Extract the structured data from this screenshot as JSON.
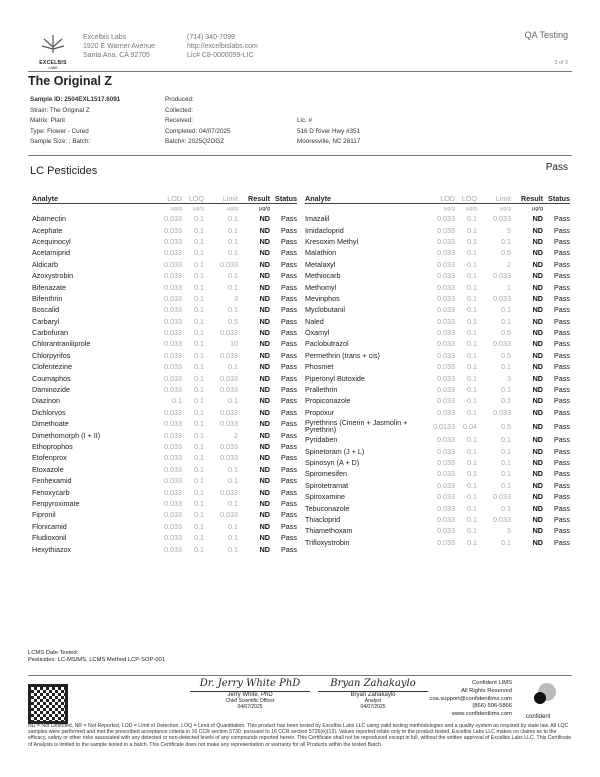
{
  "lab": {
    "logo_text": "EXCELBIS",
    "logo_sub": "LABS",
    "name": "Excelbis Labs",
    "address1": "1920 E Warner Avenue",
    "address2": "Santa Ana, CA 92705",
    "phone": "(714) 340-7099",
    "website": "http://excelbislabs.com",
    "license": "Lic# C8-0000059-LIC"
  },
  "header": {
    "category": "QA Testing",
    "page": "3 of 3"
  },
  "title": "The Original Z",
  "sample": {
    "id": "Sample ID: 2504EXL1517.6091",
    "strain": "Strain: The Original Z",
    "matrix": "Matrix: Plant",
    "type": "Type: Flower - Cured",
    "size": "Sample Size: ; Batch:",
    "produced": "Produced:",
    "collected": "Collected:",
    "received": "Received:",
    "completed": "Completed: 04/07/2025",
    "batch": "Batch#: 2025Q2OGZ",
    "lic": "Lic. #",
    "addr1": "516 D River Hwy #351",
    "addr2": "Mooresville, NC 28117"
  },
  "section": {
    "title": "LC Pesticides",
    "status": "Pass"
  },
  "columns": {
    "analyte": "Analyte",
    "lod": "LOD",
    "loq": "LOQ",
    "limit": "Limit",
    "result": "Result",
    "status": "Status",
    "unit": "µg/g"
  },
  "left_rows": [
    [
      "Abamectin",
      "0.033",
      "0.1",
      "0.1",
      "ND",
      "Pass"
    ],
    [
      "Acephate",
      "0.033",
      "0.1",
      "0.1",
      "ND",
      "Pass"
    ],
    [
      "Acequinocyl",
      "0.033",
      "0.1",
      "0.1",
      "ND",
      "Pass"
    ],
    [
      "Acetamiprid",
      "0.033",
      "0.1",
      "0.1",
      "ND",
      "Pass"
    ],
    [
      "Aldicarb",
      "0.033",
      "0.1",
      "0.033",
      "ND",
      "Pass"
    ],
    [
      "Azoxystrobin",
      "0.033",
      "0.1",
      "0.1",
      "ND",
      "Pass"
    ],
    [
      "Bifenazate",
      "0.033",
      "0.1",
      "0.1",
      "ND",
      "Pass"
    ],
    [
      "Bifenthrin",
      "0.033",
      "0.1",
      "3",
      "ND",
      "Pass"
    ],
    [
      "Boscalid",
      "0.033",
      "0.1",
      "0.1",
      "ND",
      "Pass"
    ],
    [
      "Carbaryl",
      "0.033",
      "0.1",
      "0.5",
      "ND",
      "Pass"
    ],
    [
      "Carbofuran",
      "0.033",
      "0.1",
      "0.033",
      "ND",
      "Pass"
    ],
    [
      "Chlorantraniliprole",
      "0.033",
      "0.1",
      "10",
      "ND",
      "Pass"
    ],
    [
      "Chlorpyrifos",
      "0.033",
      "0.1",
      "0.033",
      "ND",
      "Pass"
    ],
    [
      "Clofentezine",
      "0.033",
      "0.1",
      "0.1",
      "ND",
      "Pass"
    ],
    [
      "Coumaphos",
      "0.033",
      "0.1",
      "0.033",
      "ND",
      "Pass"
    ],
    [
      "Daminozide",
      "0.033",
      "0.1",
      "0.033",
      "ND",
      "Pass"
    ],
    [
      "Diazinon",
      "0.1",
      "0.1",
      "0.1",
      "ND",
      "Pass"
    ],
    [
      "Dichlorvos",
      "0.033",
      "0.1",
      "0.033",
      "ND",
      "Pass"
    ],
    [
      "Dimethoate",
      "0.033",
      "0.1",
      "0.033",
      "ND",
      "Pass"
    ],
    [
      "Dimethomorph (I + II)",
      "0.033",
      "0.1",
      "2",
      "ND",
      "Pass"
    ],
    [
      "Ethoprophos",
      "0.033",
      "0.1",
      "0.033",
      "ND",
      "Pass"
    ],
    [
      "Etofenprox",
      "0.033",
      "0.1",
      "0.033",
      "ND",
      "Pass"
    ],
    [
      "Etoxazole",
      "0.033",
      "0.1",
      "0.1",
      "ND",
      "Pass"
    ],
    [
      "Fenhexamid",
      "0.033",
      "0.1",
      "0.1",
      "ND",
      "Pass"
    ],
    [
      "Fenoxycarb",
      "0.033",
      "0.1",
      "0.033",
      "ND",
      "Pass"
    ],
    [
      "Fenpyroximate",
      "0.033",
      "0.1",
      "0.1",
      "ND",
      "Pass"
    ],
    [
      "Fipronil",
      "0.033",
      "0.1",
      "0.033",
      "ND",
      "Pass"
    ],
    [
      "Flonicamid",
      "0.033",
      "0.1",
      "0.1",
      "ND",
      "Pass"
    ],
    [
      "Fludioxonil",
      "0.033",
      "0.1",
      "0.1",
      "ND",
      "Pass"
    ],
    [
      "Hexythiazox",
      "0.033",
      "0.1",
      "0.1",
      "ND",
      "Pass"
    ]
  ],
  "right_rows": [
    [
      "Imazalil",
      "0.033",
      "0.1",
      "0.033",
      "ND",
      "Pass"
    ],
    [
      "Imidacloprid",
      "0.033",
      "0.1",
      "5",
      "ND",
      "Pass"
    ],
    [
      "Kresoxim Methyl",
      "0.033",
      "0.1",
      "0.1",
      "ND",
      "Pass"
    ],
    [
      "Malathion",
      "0.033",
      "0.1",
      "0.5",
      "ND",
      "Pass"
    ],
    [
      "Metalaxyl",
      "0.033",
      "0.1",
      "2",
      "ND",
      "Pass"
    ],
    [
      "Methiocarb",
      "0.033",
      "0.1",
      "0.033",
      "ND",
      "Pass"
    ],
    [
      "Methomyl",
      "0.033",
      "0.1",
      "1",
      "ND",
      "Pass"
    ],
    [
      "Mevinphos",
      "0.033",
      "0.1",
      "0.033",
      "ND",
      "Pass"
    ],
    [
      "Myclobutanil",
      "0.033",
      "0.1",
      "0.1",
      "ND",
      "Pass"
    ],
    [
      "Naled",
      "0.033",
      "0.1",
      "0.1",
      "ND",
      "Pass"
    ],
    [
      "Oxamyl",
      "0.033",
      "0.1",
      "0.5",
      "ND",
      "Pass"
    ],
    [
      "Paclobutrazol",
      "0.033",
      "0.1",
      "0.033",
      "ND",
      "Pass"
    ],
    [
      "Permethrin (trans + cis)",
      "0.033",
      "0.1",
      "0.5",
      "ND",
      "Pass"
    ],
    [
      "Phosmet",
      "0.033",
      "0.1",
      "0.1",
      "ND",
      "Pass"
    ],
    [
      "Piperonyl Butoxide",
      "0.033",
      "0.1",
      "3",
      "ND",
      "Pass"
    ],
    [
      "Prallethrin",
      "0.033",
      "0.1",
      "0.1",
      "ND",
      "Pass"
    ],
    [
      "Propiconazole",
      "0.033",
      "0.1",
      "0.1",
      "ND",
      "Pass"
    ],
    [
      "Propoxur",
      "0.033",
      "0.1",
      "0.033",
      "ND",
      "Pass"
    ],
    [
      "Pyrethrins (Cinerin + Jasmolin + Pyrethrin)",
      "0.0133",
      "0.04",
      "0.5",
      "ND",
      "Pass"
    ],
    [
      "Pyridaben",
      "0.033",
      "0.1",
      "0.1",
      "ND",
      "Pass"
    ],
    [
      "Spinetoram (J + L)",
      "0.033",
      "0.1",
      "0.1",
      "ND",
      "Pass"
    ],
    [
      "Spinosyn (A + D)",
      "0.033",
      "0.1",
      "0.1",
      "ND",
      "Pass"
    ],
    [
      "Spiromesifen",
      "0.033",
      "0.1",
      "0.1",
      "ND",
      "Pass"
    ],
    [
      "Spirotetramat",
      "0.033",
      "0.1",
      "0.1",
      "ND",
      "Pass"
    ],
    [
      "Spiroxamine",
      "0.033",
      "0.1",
      "0.033",
      "ND",
      "Pass"
    ],
    [
      "Tebuconazole",
      "0.033",
      "0.1",
      "0.1",
      "ND",
      "Pass"
    ],
    [
      "Thiacloprid",
      "0.033",
      "0.1",
      "0.033",
      "ND",
      "Pass"
    ],
    [
      "Thiamethoxam",
      "0.033",
      "0.1",
      "5",
      "ND",
      "Pass"
    ],
    [
      "Trifloxystrobin",
      "0.033",
      "0.1",
      "0.1",
      "ND",
      "Pass"
    ]
  ],
  "method": {
    "date": "LCMS Date Tested:",
    "desc": "Pesticides: LC-MS/MS, LCMS Method LCP-SOP-001"
  },
  "signers": [
    {
      "signature": "Dr. Jerry White PhD",
      "name": "Jerry White, PhD",
      "title": "Chief Scientific Officer",
      "date": "04/07/2025"
    },
    {
      "signature": "Bryan Zahakaylo",
      "name": "Bryan Zahakaylo",
      "title": "Analyst",
      "date": "04/07/2025"
    }
  ],
  "lims": {
    "name": "Confident LIMS",
    "rights": "All Rights Reserved",
    "email": "coa.support@confidentlims.com",
    "phone": "(866) 506-5866",
    "web": "www.confidentlims.com",
    "logo_text": "confident"
  },
  "disclaimer": "ND = Not Detected, NR = Not Reported, LOD = Limit of Detection, LOQ = Limit of Quantitation. This product has been tested by Excelbis Labs LLC using valid testing methodologies and a quality system as required by state law. All LQC samples were performed and met the prescribed acceptance criteria in 16 CCR section 5730, pursuant to 16 CCR section 5726(e)(13). Values reported relate only to the product tested. Excelbis Labs LLC makes no claims as to the efficacy, safety or other risks associated with any detected or non-detected levels of any compounds reported herein. This Certificate shall not be reproduced except in full, without the written approval of Excelbis Labs LLC. This Certificate of Analysis is limited to the sample tested in a batch. This Certificate does not make any representation or warranty for all Products within the tested Batch."
}
